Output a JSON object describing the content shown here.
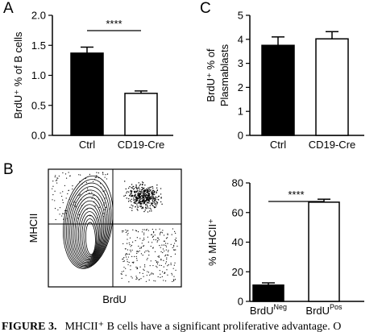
{
  "panels": [
    "A",
    "B",
    "C"
  ],
  "flow": {
    "y_label": "MHCII",
    "x_label": "BrdU"
  },
  "caption": {
    "label": "FIGURE 3.",
    "text": "MHCII⁺ B cells have a significant proliferative advantage. O"
  },
  "chart_data": [
    {
      "type": "bar",
      "ylabel": "BrdU⁺ % of B cells",
      "categories": [
        "Ctrl",
        "CD19-Cre"
      ],
      "values": [
        1.37,
        0.7
      ],
      "errors": [
        0.1,
        0.04
      ],
      "colors": [
        "#000000",
        "#ffffff"
      ],
      "ylim": [
        0,
        2
      ],
      "yticks": [
        {
          "value": 0,
          "label": "0.0"
        },
        0.5,
        {
          "value": 1,
          "label": "1.0"
        },
        1.5,
        {
          "value": 2,
          "label": "2.0"
        }
      ],
      "significance": "****"
    },
    {
      "type": "bar",
      "ylabel": [
        "BrdU⁺ % of",
        "Plasmablasts"
      ],
      "categories": [
        "Ctrl",
        "CD19-Cre"
      ],
      "values": [
        3.75,
        4.02
      ],
      "errors": [
        0.35,
        0.3
      ],
      "colors": [
        "#000000",
        "#ffffff"
      ],
      "ylim": [
        0,
        5
      ],
      "yticks": [
        0,
        1,
        2,
        3,
        4,
        5
      ]
    },
    {
      "type": "bar",
      "ylabel": "% MHCII⁺",
      "categories": [
        "BrdU",
        "BrdU"
      ],
      "category_superscripts": [
        "Neg",
        "Pos"
      ],
      "values": [
        11,
        67
      ],
      "errors": [
        1.5,
        2
      ],
      "colors": [
        "#000000",
        "#ffffff"
      ],
      "ylim": [
        0,
        80
      ],
      "yticks": [
        0,
        20,
        40,
        60,
        80
      ],
      "significance": "****"
    }
  ]
}
